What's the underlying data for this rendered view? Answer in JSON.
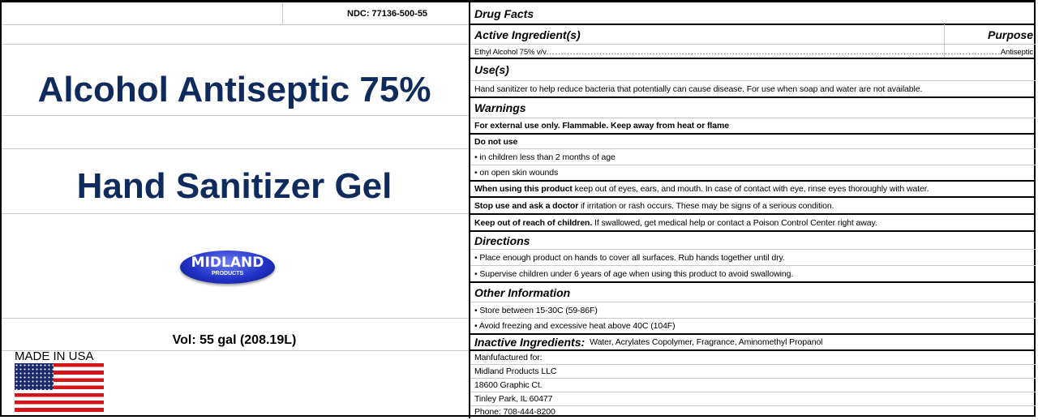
{
  "left": {
    "ndc": "NDC: 77136-500-55",
    "title": "Alcohol Antiseptic 75%",
    "subtitle": "Hand Sanitizer Gel",
    "logo": {
      "brand": "MIDLAND",
      "sub": "PRODUCTS"
    },
    "volume": "Vol: 55 gal  (208.19L)",
    "made_in": "MADE IN USA",
    "flag_icon": "us-flag-icon"
  },
  "facts": {
    "heading": "Drug Facts",
    "active_heading": "Active Ingredient(s)",
    "purpose_heading": "Purpose",
    "active_ingredient": "Ethyl Alcohol 75% v/v",
    "purpose": "Antiseptic",
    "uses_heading": "Use(s)",
    "uses_text": "Hand sanitizer to help reduce bacteria that potentially can cause disease. For use when soap and water are not available.",
    "warnings_heading": "Warnings",
    "external": "For external use only. Flammable. Keep away from heat or flame",
    "do_not_use": "Do not use",
    "dnu_1": "• in children less than 2 months of age",
    "dnu_2": "• on open skin wounds",
    "when_using_bold": "When using this product",
    "when_using_text": " keep out of eyes, ears, and mouth. In case of contact with eye, rinse eyes thoroughly with water.",
    "stop_use_bold": "Stop use and ask a doctor",
    "stop_use_text": " if irritation or rash occurs. These may be signs of a serious condition.",
    "keep_out_bold": "Keep out of reach of children.",
    "keep_out_text": " If swallowed, get medical help or contact a Poison Control Center right away.",
    "directions_heading": "Directions",
    "dir_1": "• Place enough product on hands to cover all surfaces. Rub hands together until dry.",
    "dir_2": "• Supervise children under 6 years of age when using this product to avoid swallowing.",
    "other_heading": "Other Information",
    "other_1": "• Store between 15-30C (59-86F)",
    "other_2": "• Avoid freezing and excessive heat above 40C (104F)",
    "inactive_heading": "Inactive Ingredients:",
    "inactive_text": "Water, Acrylates Copolymer, Fragrance, Aminomethyl Propanol",
    "mfr_1": "Manfufactured for:",
    "mfr_2": "Midland Products LLC",
    "mfr_3": "18600 Graphic Ct.",
    "mfr_4": "Tinley Park, IL 60477",
    "mfr_5": "Phone: 708-444-8200"
  },
  "colors": {
    "title": "#0f2a5c",
    "logo": "#2233c8",
    "flag_red": "#d2141b",
    "flag_blue": "#1a2a6c"
  }
}
